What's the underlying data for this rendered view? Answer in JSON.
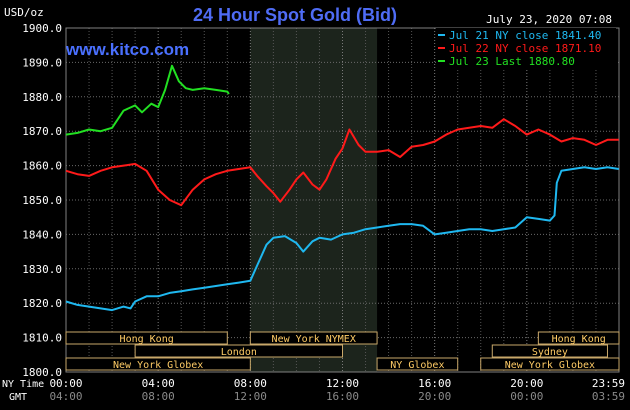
{
  "chart_data": {
    "type": "line",
    "title": "24 Hour Spot Gold (Bid)",
    "ylabel": "USD/oz",
    "brand": "www.kitco.com",
    "timestamp": "July 23, 2020 07:08",
    "ylim": [
      1800,
      1900
    ],
    "yticks": [
      "1900.0",
      "1890.0",
      "1880.0",
      "1870.0",
      "1860.0",
      "1850.0",
      "1840.0",
      "1830.0",
      "1820.0",
      "1810.0",
      "1800.0"
    ],
    "xlim": [
      0,
      24
    ],
    "ny_time_label": "NY Time",
    "gmt_label": "GMT",
    "x_ticks_ny": [
      "00:00",
      "04:00",
      "08:00",
      "12:00",
      "16:00",
      "20:00",
      "23:59"
    ],
    "x_ticks_gmt": [
      "04:00",
      "08:00",
      "12:00",
      "16:00",
      "20:00",
      "00:00",
      "03:59"
    ],
    "grid": true,
    "legend_position": "top-right",
    "series": [
      {
        "name": "Jul 21 NY close 1841.40",
        "color": "#1fb8f0",
        "x": [
          0,
          0.5,
          1,
          1.5,
          2,
          2.5,
          2.8,
          3,
          3.5,
          4,
          4.5,
          5,
          5.5,
          6,
          6.5,
          7,
          7.5,
          8,
          8.3,
          8.7,
          9,
          9.5,
          10,
          10.3,
          10.7,
          11,
          11.5,
          12,
          12.5,
          13,
          13.5,
          14,
          14.5,
          15,
          15.5,
          16,
          16.5,
          17,
          17.5,
          18,
          18.5,
          19,
          19.5,
          20,
          20.5,
          21,
          21.2,
          21.3,
          21.5,
          22,
          22.5,
          23,
          23.5,
          23.99
        ],
        "y": [
          1820.5,
          1819.5,
          1819.0,
          1818.5,
          1818.0,
          1819.0,
          1818.5,
          1820.5,
          1822.0,
          1822.0,
          1823.0,
          1823.5,
          1824.0,
          1824.5,
          1825.0,
          1825.5,
          1826.0,
          1826.5,
          1831.0,
          1837.0,
          1839.0,
          1839.5,
          1837.5,
          1835.0,
          1838.0,
          1839.0,
          1838.5,
          1840.0,
          1840.5,
          1841.5,
          1842.0,
          1842.5,
          1843.0,
          1843.0,
          1842.5,
          1840.0,
          1840.5,
          1841.0,
          1841.5,
          1841.5,
          1841.0,
          1841.5,
          1842.0,
          1845.0,
          1844.5,
          1844.0,
          1845.5,
          1855.0,
          1858.5,
          1859.0,
          1859.5,
          1859.0,
          1859.5,
          1859.0
        ]
      },
      {
        "name": "Jul 22 NY close 1871.10",
        "color": "#ff1a1a",
        "x": [
          0,
          0.5,
          1,
          1.5,
          2,
          2.5,
          3,
          3.5,
          4,
          4.5,
          5,
          5.5,
          6,
          6.5,
          7,
          7.5,
          8,
          8.3,
          8.7,
          9,
          9.3,
          9.7,
          10,
          10.3,
          10.7,
          11,
          11.3,
          11.7,
          12,
          12.3,
          12.7,
          13,
          13.5,
          14,
          14.5,
          15,
          15.5,
          16,
          16.5,
          17,
          17.5,
          18,
          18.5,
          19,
          19.5,
          20,
          20.5,
          21,
          21.5,
          22,
          22.5,
          23,
          23.5,
          23.99
        ],
        "y": [
          1858.5,
          1857.5,
          1857.0,
          1858.5,
          1859.5,
          1860.0,
          1860.5,
          1858.5,
          1853.0,
          1850.0,
          1848.5,
          1853.0,
          1856.0,
          1857.5,
          1858.5,
          1859.0,
          1859.5,
          1857.0,
          1854.0,
          1852.0,
          1849.5,
          1853.0,
          1856.0,
          1858.0,
          1854.5,
          1853.0,
          1856.0,
          1862.0,
          1865.0,
          1870.5,
          1866.0,
          1864.0,
          1864.0,
          1864.5,
          1862.5,
          1865.5,
          1866.0,
          1867.0,
          1869.0,
          1870.5,
          1871.0,
          1871.5,
          1871.0,
          1873.5,
          1871.5,
          1869.0,
          1870.5,
          1869.0,
          1867.0,
          1868.0,
          1867.5,
          1866.0,
          1867.5,
          1867.5
        ]
      },
      {
        "name": "Jul 23 Last 1880.80",
        "color": "#22e022",
        "x": [
          0,
          0.5,
          1,
          1.5,
          2,
          2.5,
          3,
          3.3,
          3.7,
          4,
          4.3,
          4.6,
          4.9,
          5.2,
          5.5,
          6,
          6.5,
          7,
          7.07
        ],
        "y": [
          1869.0,
          1869.5,
          1870.5,
          1870.0,
          1871.0,
          1876.0,
          1877.5,
          1875.5,
          1878.0,
          1877.0,
          1882.0,
          1889.0,
          1884.5,
          1882.5,
          1882.0,
          1882.5,
          1882.0,
          1881.5,
          1880.8
        ]
      }
    ],
    "shaded_region": {
      "start": 8.0,
      "end": 13.5
    },
    "markets": [
      {
        "label": "Hong Kong",
        "start": 0,
        "end": 7
      },
      {
        "label": "London",
        "start": 3,
        "end": 12
      },
      {
        "label": "New York Globex",
        "start": 0,
        "end": 8
      },
      {
        "label": "New York NYMEX",
        "start": 8.0,
        "end": 13.5
      },
      {
        "label": "NY Globex",
        "start": 13.5,
        "end": 17
      },
      {
        "label": "Hong Kong",
        "start": 20.5,
        "end": 24
      },
      {
        "label": "Sydney",
        "start": 18.5,
        "end": 23.5
      },
      {
        "label": "New York Globex",
        "start": 18,
        "end": 24
      }
    ]
  }
}
